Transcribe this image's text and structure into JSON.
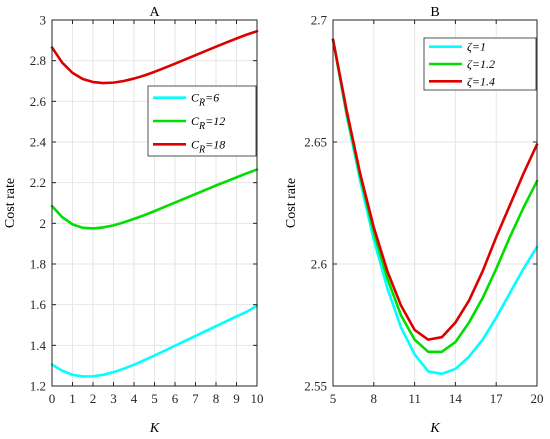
{
  "chart_data": [
    {
      "type": "line",
      "title": "A",
      "xlabel": "K",
      "ylabel": "Cost rate",
      "xlim": [
        0,
        10
      ],
      "ylim": [
        1.2,
        3.0
      ],
      "xticks": [
        0,
        1,
        2,
        3,
        4,
        5,
        6,
        7,
        8,
        9,
        10
      ],
      "yticks": [
        1.2,
        1.4,
        1.6,
        1.8,
        2.0,
        2.2,
        2.4,
        2.6,
        2.8,
        3.0
      ],
      "ytick_labels": [
        "1.2",
        "1.4",
        "1.6",
        "1.8",
        "2",
        "2.2",
        "2.4",
        "2.6",
        "2.8",
        "3"
      ],
      "grid": true,
      "legend_position": "upper-right",
      "x": [
        0,
        0.5,
        1,
        1.5,
        2,
        2.5,
        3,
        3.5,
        4,
        4.5,
        5,
        5.5,
        6,
        6.5,
        7,
        7.5,
        8,
        8.5,
        9,
        9.5,
        10
      ],
      "series": [
        {
          "name": "C",
          "subscript": "R",
          "suffix": "=6",
          "color": "#00ffff",
          "values": [
            1.305,
            1.275,
            1.255,
            1.247,
            1.248,
            1.255,
            1.268,
            1.285,
            1.305,
            1.327,
            1.35,
            1.374,
            1.398,
            1.422,
            1.446,
            1.47,
            1.494,
            1.518,
            1.542,
            1.565,
            1.595
          ]
        },
        {
          "name": "C",
          "subscript": "R",
          "suffix": "=12",
          "color": "#00dd00",
          "values": [
            2.085,
            2.03,
            1.995,
            1.978,
            1.975,
            1.98,
            1.99,
            2.005,
            2.022,
            2.04,
            2.06,
            2.081,
            2.102,
            2.123,
            2.144,
            2.165,
            2.186,
            2.206,
            2.226,
            2.246,
            2.265
          ]
        },
        {
          "name": "C",
          "subscript": "R",
          "suffix": "=18",
          "color": "#dd0000",
          "values": [
            2.865,
            2.79,
            2.74,
            2.71,
            2.695,
            2.69,
            2.692,
            2.7,
            2.712,
            2.727,
            2.745,
            2.765,
            2.785,
            2.806,
            2.827,
            2.848,
            2.869,
            2.889,
            2.909,
            2.928,
            2.945
          ]
        }
      ]
    },
    {
      "type": "line",
      "title": "B",
      "xlabel": "K",
      "ylabel": "Cost rate",
      "xlim": [
        5,
        20
      ],
      "ylim": [
        2.55,
        2.7
      ],
      "xticks": [
        5,
        8,
        11,
        14,
        17,
        20
      ],
      "yticks": [
        2.55,
        2.6,
        2.65,
        2.7
      ],
      "ytick_labels": [
        "2.55",
        "2.6",
        "2.65",
        "2.7"
      ],
      "grid": true,
      "legend_position": "upper-right",
      "x": [
        5,
        6,
        7,
        8,
        9,
        10,
        11,
        12,
        13,
        14,
        15,
        16,
        17,
        18,
        19,
        20
      ],
      "series": [
        {
          "name": "ζ=1",
          "color": "#00ffff",
          "values": [
            2.692,
            2.661,
            2.634,
            2.61,
            2.59,
            2.574,
            2.563,
            2.556,
            2.555,
            2.557,
            2.562,
            2.569,
            2.578,
            2.588,
            2.598,
            2.607
          ]
        },
        {
          "name": "ζ=1.2",
          "color": "#00dd00",
          "values": [
            2.692,
            2.662,
            2.636,
            2.613,
            2.594,
            2.579,
            2.569,
            2.564,
            2.564,
            2.568,
            2.576,
            2.586,
            2.598,
            2.611,
            2.623,
            2.634
          ]
        },
        {
          "name": "ζ=1.4",
          "color": "#dd0000",
          "values": [
            2.692,
            2.663,
            2.637,
            2.615,
            2.597,
            2.583,
            2.573,
            2.569,
            2.57,
            2.576,
            2.585,
            2.597,
            2.611,
            2.624,
            2.637,
            2.649
          ]
        }
      ]
    }
  ]
}
